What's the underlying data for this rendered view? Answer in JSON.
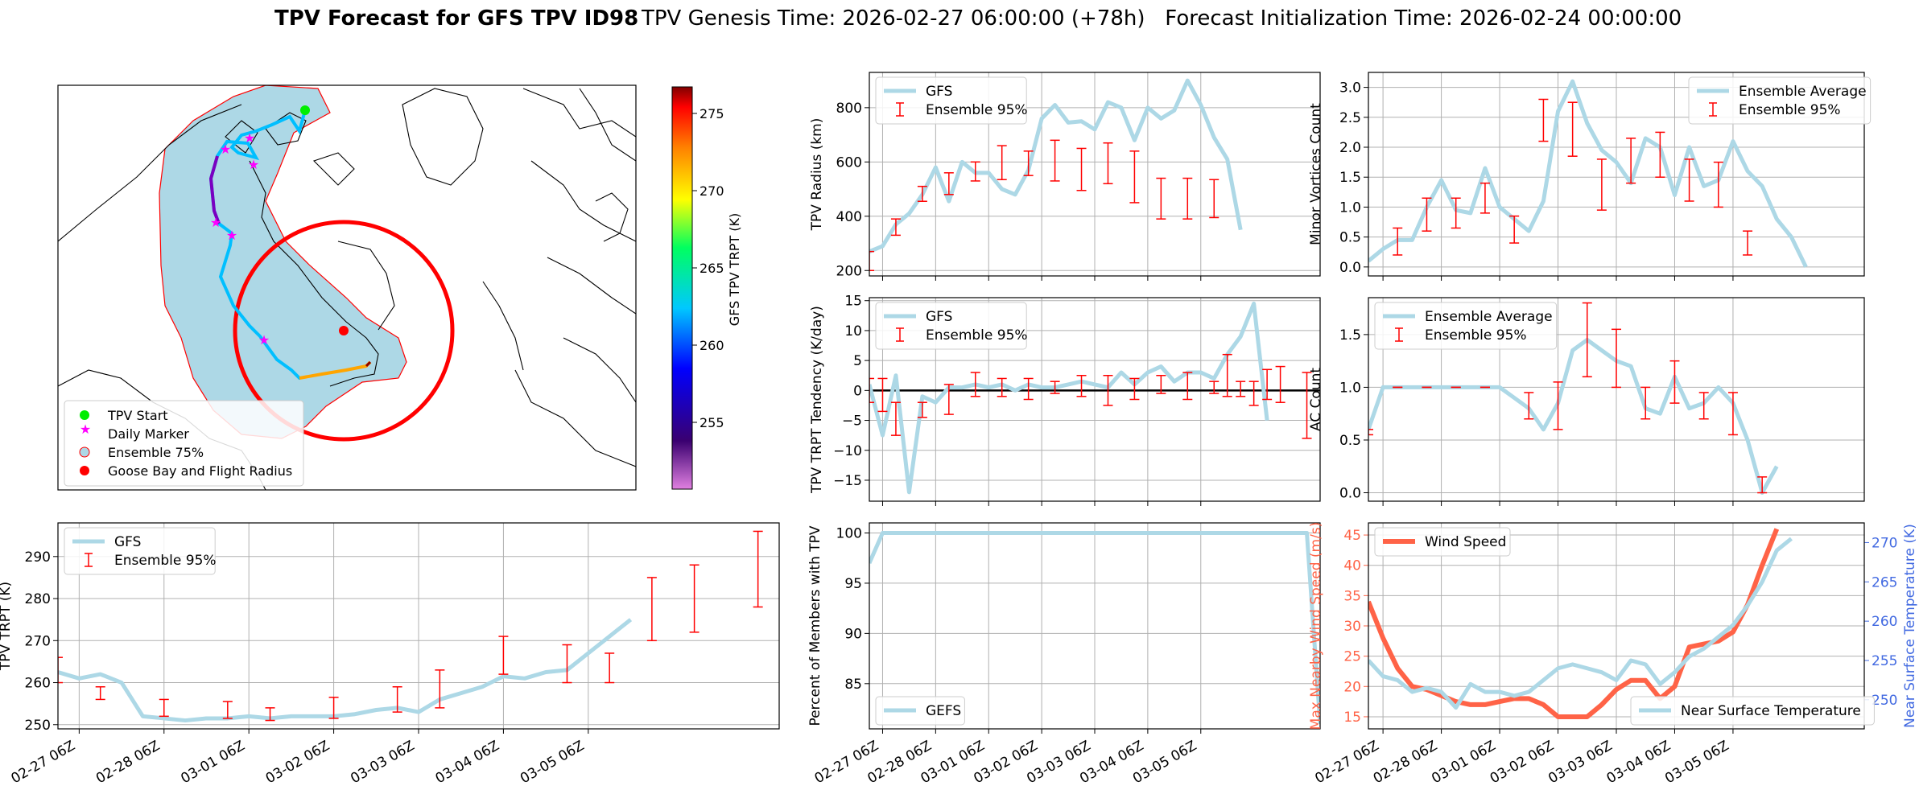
{
  "title": {
    "bold": "TPV Forecast for GFS TPV ID98",
    "rest": "TPV Genesis Time: 2026-02-27 06:00:00 (+78h)   Forecast Initialization Time: 2026-02-24 00:00:00"
  },
  "colors": {
    "gfs_line": "#add8e6",
    "ensemble_bar": "#ff0000",
    "wind": "#ff6347",
    "temp_axis": "#4169e1",
    "grid": "#b0b0b0",
    "ocean": "#add8e6",
    "track_start": "#00ee00",
    "daily_marker": "#ff00ff",
    "goose_bay": "#ff0000"
  },
  "time_ticks": [
    "02-27 06Z",
    "02-28 06Z",
    "03-01 06Z",
    "03-02 06Z",
    "03-03 06Z",
    "03-04 06Z",
    "03-05 06Z"
  ],
  "map": {
    "legend": [
      "TPV Start",
      "Daily Marker",
      "Ensemble 75%",
      "Goose Bay and Flight Radius"
    ],
    "colorbar": {
      "label": "GFS TPV TRPT (K)",
      "ticks": [
        "275",
        "270",
        "265",
        "260",
        "255"
      ]
    }
  },
  "chart_data": [
    {
      "id": "radius",
      "type": "line",
      "ylabel": "TPV Radius (km)",
      "ylim": [
        180,
        930
      ],
      "yticks": [
        "200",
        "400",
        "600",
        "800"
      ],
      "xlim": [
        0,
        34
      ],
      "legend": [
        "GFS",
        "Ensemble 95%"
      ],
      "series": [
        {
          "name": "GFS",
          "x_start": 0,
          "values": [
            270,
            290,
            370,
            410,
            480,
            580,
            455,
            600,
            560,
            560,
            500,
            480,
            570,
            760,
            810,
            745,
            750,
            720,
            820,
            800,
            680,
            800,
            760,
            790,
            900,
            810,
            690,
            610,
            350
          ]
        }
      ],
      "errorbars": [
        {
          "x": 0,
          "lo": 200,
          "hi": 270
        },
        {
          "x": 2,
          "lo": 330,
          "hi": 390
        },
        {
          "x": 4,
          "lo": 455,
          "hi": 510
        },
        {
          "x": 6,
          "lo": 480,
          "hi": 560
        },
        {
          "x": 8,
          "lo": 530,
          "hi": 600
        },
        {
          "x": 10,
          "lo": 535,
          "hi": 660
        },
        {
          "x": 12,
          "lo": 550,
          "hi": 640
        },
        {
          "x": 14,
          "lo": 530,
          "hi": 680
        },
        {
          "x": 16,
          "lo": 495,
          "hi": 650
        },
        {
          "x": 18,
          "lo": 520,
          "hi": 670
        },
        {
          "x": 20,
          "lo": 450,
          "hi": 640
        },
        {
          "x": 22,
          "lo": 390,
          "hi": 540
        },
        {
          "x": 24,
          "lo": 390,
          "hi": 540
        },
        {
          "x": 26,
          "lo": 395,
          "hi": 535
        }
      ]
    },
    {
      "id": "minor",
      "type": "line",
      "ylabel": "Minor Vortices Count",
      "ylim": [
        -0.15,
        3.25
      ],
      "yticks": [
        "0.0",
        "0.5",
        "1.0",
        "1.5",
        "2.0",
        "2.5",
        "3.0"
      ],
      "xlim": [
        0,
        34
      ],
      "legend": [
        "Ensemble Average",
        "Ensemble 95%"
      ],
      "series": [
        {
          "name": "Ensemble Average",
          "x_start": 0,
          "values": [
            0.1,
            0.3,
            0.45,
            0.45,
            1.0,
            1.45,
            0.95,
            0.9,
            1.65,
            1.0,
            0.8,
            0.6,
            1.1,
            2.6,
            3.1,
            2.4,
            1.95,
            1.75,
            1.4,
            2.15,
            2.0,
            1.2,
            2.0,
            1.35,
            1.45,
            2.1,
            1.6,
            1.35,
            0.8,
            0.5,
            0.0
          ]
        }
      ],
      "errorbars": [
        {
          "x": 2,
          "lo": 0.2,
          "hi": 0.65
        },
        {
          "x": 4,
          "lo": 0.6,
          "hi": 1.15
        },
        {
          "x": 6,
          "lo": 0.65,
          "hi": 1.15
        },
        {
          "x": 8,
          "lo": 0.9,
          "hi": 1.4
        },
        {
          "x": 10,
          "lo": 0.4,
          "hi": 0.85
        },
        {
          "x": 12,
          "lo": 2.1,
          "hi": 2.8
        },
        {
          "x": 14,
          "lo": 1.85,
          "hi": 2.75
        },
        {
          "x": 16,
          "lo": 0.95,
          "hi": 1.8
        },
        {
          "x": 18,
          "lo": 1.4,
          "hi": 2.15
        },
        {
          "x": 20,
          "lo": 1.5,
          "hi": 2.25
        },
        {
          "x": 22,
          "lo": 1.1,
          "hi": 1.8
        },
        {
          "x": 24,
          "lo": 1.0,
          "hi": 1.75
        },
        {
          "x": 26,
          "lo": 0.2,
          "hi": 0.6
        }
      ]
    },
    {
      "id": "tendency",
      "type": "line",
      "ylabel": "TPV TRPT Tendency (K/day)",
      "ylim": [
        -18.5,
        15.5
      ],
      "yticks": [
        "15",
        "10",
        "5",
        "0",
        "−5",
        "−10",
        "−15"
      ],
      "xlim": [
        0,
        34
      ],
      "legend": [
        "GFS",
        "Ensemble 95%"
      ],
      "series": [
        {
          "name": "GFS",
          "x_start": 0,
          "values": [
            1.0,
            -7.5,
            2.5,
            -17,
            -1.0,
            -2.0,
            0.5,
            0.5,
            1.0,
            0.5,
            1.0,
            0.0,
            1.0,
            0.5,
            0.5,
            1.0,
            1.5,
            1.0,
            0.5,
            3.0,
            1.0,
            3.0,
            4.0,
            1.5,
            3.0,
            3.0,
            2.0,
            6.0,
            9.0,
            14.5,
            -5.0
          ]
        }
      ],
      "errorbars": [
        {
          "x": 0,
          "lo": -2.0,
          "hi": 2.0
        },
        {
          "x": 1,
          "lo": -3.5,
          "hi": 2.0
        },
        {
          "x": 2,
          "lo": -7.5,
          "hi": -2.0
        },
        {
          "x": 4,
          "lo": -4.5,
          "hi": -2.0
        },
        {
          "x": 6,
          "lo": -4.0,
          "hi": 1.0
        },
        {
          "x": 8,
          "lo": -1.0,
          "hi": 3.0
        },
        {
          "x": 10,
          "lo": -1.0,
          "hi": 2.0
        },
        {
          "x": 12,
          "lo": -1.5,
          "hi": 2.0
        },
        {
          "x": 14,
          "lo": -0.5,
          "hi": 1.5
        },
        {
          "x": 16,
          "lo": -1.0,
          "hi": 2.5
        },
        {
          "x": 18,
          "lo": -2.5,
          "hi": 2.5
        },
        {
          "x": 20,
          "lo": -1.5,
          "hi": 2.0
        },
        {
          "x": 22,
          "lo": -0.5,
          "hi": 2.5
        },
        {
          "x": 24,
          "lo": -1.5,
          "hi": 3.0
        },
        {
          "x": 26,
          "lo": -0.5,
          "hi": 1.5
        },
        {
          "x": 27,
          "lo": -1.0,
          "hi": 6.0
        },
        {
          "x": 28,
          "lo": -1.0,
          "hi": 1.5
        },
        {
          "x": 29,
          "lo": -2.5,
          "hi": 1.5
        },
        {
          "x": 30,
          "lo": -1.5,
          "hi": 3.5
        },
        {
          "x": 31,
          "lo": -2.0,
          "hi": 4.0
        },
        {
          "x": 33,
          "lo": -8.0,
          "hi": 3.0
        }
      ]
    },
    {
      "id": "ac",
      "type": "line",
      "ylabel": "AC Count",
      "ylim": [
        -0.08,
        1.85
      ],
      "yticks": [
        "0.0",
        "0.5",
        "1.0",
        "1.5"
      ],
      "xlim": [
        0,
        34
      ],
      "legend": [
        "Ensemble Average",
        "Ensemble 95%"
      ],
      "series": [
        {
          "name": "Ensemble Average",
          "x_start": 0,
          "values": [
            0.6,
            1.0,
            1.0,
            1.0,
            1.0,
            1.0,
            1.0,
            1.0,
            1.0,
            1.0,
            0.9,
            0.8,
            0.6,
            0.85,
            1.35,
            1.45,
            1.35,
            1.25,
            1.2,
            0.8,
            0.75,
            1.1,
            0.8,
            0.85,
            1.0,
            0.85,
            0.5,
            0.0,
            0.25
          ]
        }
      ],
      "errorbars": [
        {
          "x": 0,
          "lo": 0.55,
          "hi": 0.6
        },
        {
          "x": 2,
          "lo": 1.0,
          "hi": 1.0
        },
        {
          "x": 4,
          "lo": 1.0,
          "hi": 1.0
        },
        {
          "x": 6,
          "lo": 1.0,
          "hi": 1.0
        },
        {
          "x": 8,
          "lo": 1.0,
          "hi": 1.0
        },
        {
          "x": 11,
          "lo": 0.7,
          "hi": 0.95
        },
        {
          "x": 13,
          "lo": 0.6,
          "hi": 1.05
        },
        {
          "x": 15,
          "lo": 1.1,
          "hi": 1.8
        },
        {
          "x": 17,
          "lo": 1.0,
          "hi": 1.55
        },
        {
          "x": 19,
          "lo": 0.7,
          "hi": 1.0
        },
        {
          "x": 21,
          "lo": 0.85,
          "hi": 1.25
        },
        {
          "x": 23,
          "lo": 0.7,
          "hi": 0.95
        },
        {
          "x": 25,
          "lo": 0.55,
          "hi": 0.95
        },
        {
          "x": 27,
          "lo": 0.0,
          "hi": 0.15
        }
      ]
    },
    {
      "id": "trpt",
      "type": "line",
      "ylabel": "TPV TRPT (K)",
      "ylim": [
        249,
        298
      ],
      "yticks": [
        "250",
        "260",
        "270",
        "280",
        "290"
      ],
      "xlim": [
        0,
        34
      ],
      "legend": [
        "GFS",
        "Ensemble 95%"
      ],
      "series": [
        {
          "name": "GFS",
          "x_start": 0,
          "values": [
            262.5,
            261,
            262,
            260,
            252,
            251.5,
            251,
            251.5,
            251.5,
            252,
            251.5,
            252,
            252,
            252,
            252.5,
            253.5,
            254,
            253,
            256,
            257.5,
            259,
            261.5,
            261,
            262.5,
            263,
            267,
            271,
            275
          ]
        }
      ],
      "errorbars": [
        {
          "x": 0,
          "lo": 260,
          "hi": 266
        },
        {
          "x": 2,
          "lo": 256,
          "hi": 259
        },
        {
          "x": 5,
          "lo": 252,
          "hi": 256
        },
        {
          "x": 8,
          "lo": 251.5,
          "hi": 255.5
        },
        {
          "x": 10,
          "lo": 251,
          "hi": 254
        },
        {
          "x": 13,
          "lo": 251.5,
          "hi": 256.5
        },
        {
          "x": 16,
          "lo": 253,
          "hi": 259
        },
        {
          "x": 18,
          "lo": 254,
          "hi": 263
        },
        {
          "x": 21,
          "lo": 262,
          "hi": 271
        },
        {
          "x": 24,
          "lo": 260,
          "hi": 269
        },
        {
          "x": 26,
          "lo": 260,
          "hi": 267
        },
        {
          "x": 28,
          "lo": 270,
          "hi": 285
        },
        {
          "x": 30,
          "lo": 272,
          "hi": 288
        },
        {
          "x": 33,
          "lo": 278,
          "hi": 296
        }
      ]
    },
    {
      "id": "percent",
      "type": "line",
      "ylabel": "Percent of Members with TPV",
      "ylim": [
        80.5,
        101
      ],
      "yticks": [
        "100",
        "95",
        "90",
        "85"
      ],
      "xlim": [
        0,
        34
      ],
      "legend": [
        "GEFS"
      ],
      "series": [
        {
          "name": "GEFS",
          "points": [
            [
              0,
              97
            ],
            [
              1,
              100
            ],
            [
              33,
              100
            ],
            [
              34,
              81
            ]
          ]
        }
      ]
    },
    {
      "id": "wind",
      "type": "line",
      "ylabel": "Max Nearby Wind Speed (m/s)",
      "y2label": "Near Surface Temperature (K)",
      "ylim": [
        13,
        47
      ],
      "yticks": [
        "15",
        "20",
        "25",
        "30",
        "35",
        "40",
        "45"
      ],
      "y2lim": [
        246.3,
        272.5
      ],
      "y2ticks": [
        "250",
        "255",
        "260",
        "265",
        "270"
      ],
      "xlim": [
        0,
        34
      ],
      "legend": [
        "Wind Speed",
        "Near Surface Temperature"
      ],
      "series": [
        {
          "name": "Wind Speed",
          "axis": "left",
          "x_start": 0,
          "values": [
            34,
            28,
            23,
            20,
            19.5,
            18.5,
            17.5,
            17,
            17,
            17.5,
            18,
            18,
            17,
            15,
            15,
            15,
            17,
            19.5,
            21,
            21,
            18,
            20,
            26.5,
            27,
            27.5,
            29,
            33.5,
            40,
            46
          ]
        },
        {
          "name": "Near Surface Temperature",
          "axis": "right",
          "x_start": 0,
          "values": [
            255,
            253,
            252.5,
            251,
            251.5,
            251,
            249,
            252,
            251,
            251,
            250.5,
            251,
            252.5,
            254,
            254.5,
            254,
            253.5,
            252.5,
            255,
            254.5,
            252,
            253.5,
            255.5,
            256.5,
            258,
            259.5,
            262,
            265,
            269,
            270.5
          ]
        }
      ]
    }
  ]
}
